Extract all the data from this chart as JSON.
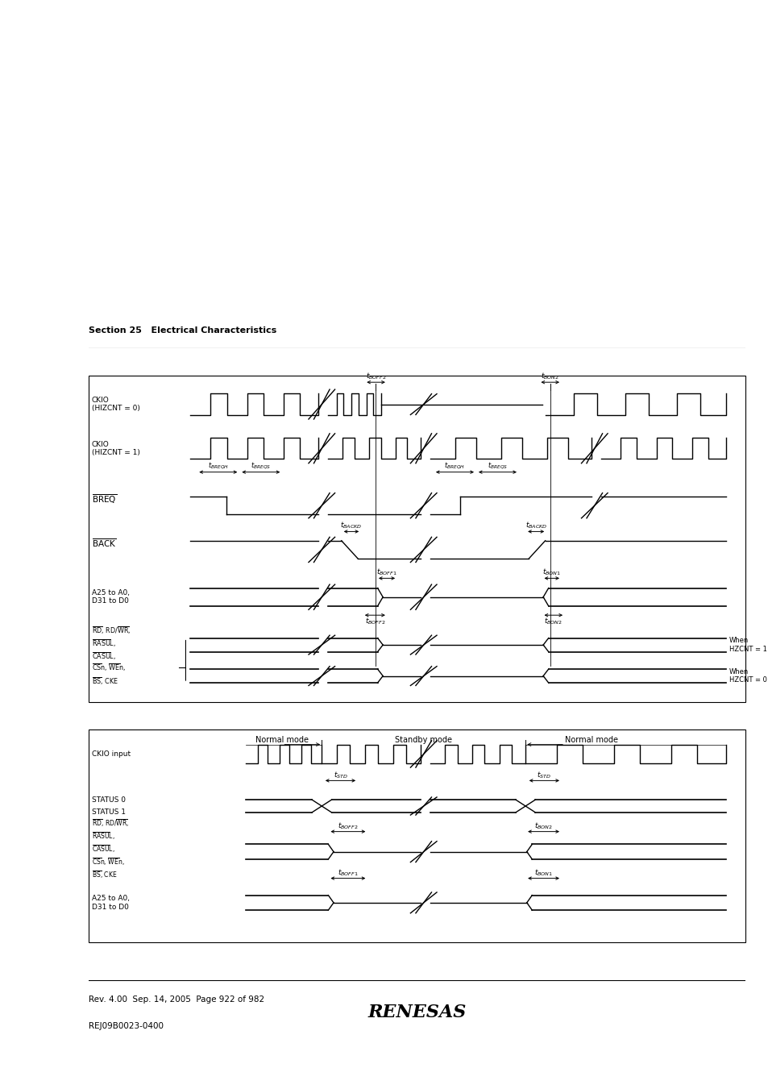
{
  "fig_width": 9.54,
  "fig_height": 13.51,
  "bg_color": "#ffffff",
  "section_title": "Section 25   Electrical Characteristics",
  "footer_rev": "Rev. 4.00  Sep. 14, 2005  Page 922 of 982",
  "footer_rej": "REJ09B0023-0400",
  "renesas_text": "RENESAS"
}
